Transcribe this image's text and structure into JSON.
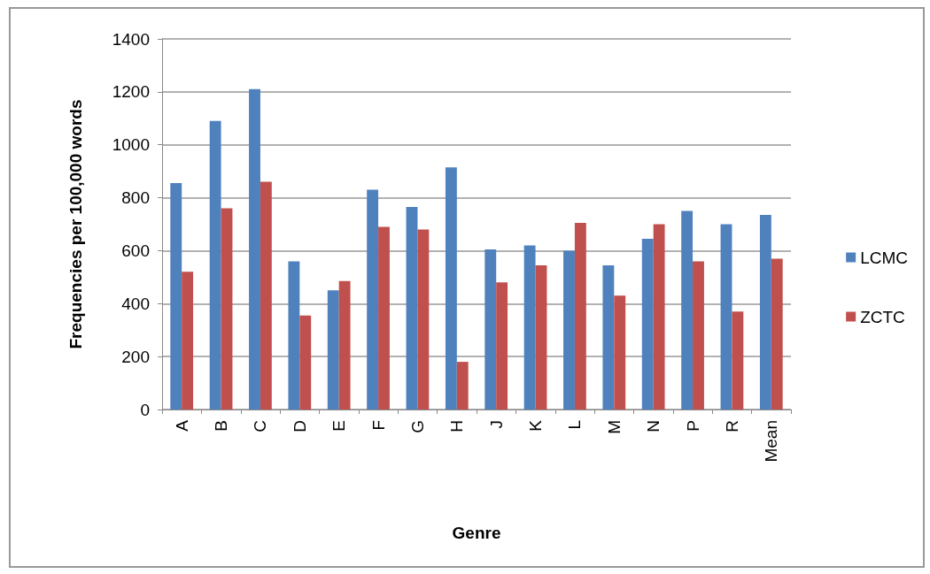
{
  "chart_data": {
    "type": "bar",
    "xlabel": "Genre",
    "ylabel": "Frequencies per 100,000 words",
    "categories": [
      "A",
      "B",
      "C",
      "D",
      "E",
      "F",
      "G",
      "H",
      "J",
      "K",
      "L",
      "M",
      "N",
      "P",
      "R",
      "Mean"
    ],
    "series": [
      {
        "name": "LCMC",
        "color": "#4f81bd",
        "values": [
          855,
          1090,
          1210,
          560,
          450,
          830,
          765,
          915,
          605,
          620,
          600,
          545,
          645,
          750,
          700,
          735
        ]
      },
      {
        "name": "ZCTC",
        "color": "#c0504d",
        "values": [
          520,
          760,
          860,
          355,
          485,
          690,
          680,
          180,
          480,
          545,
          705,
          430,
          700,
          560,
          370,
          570
        ]
      }
    ],
    "ylim": [
      0,
      1400
    ],
    "yticks": [
      0,
      200,
      400,
      600,
      800,
      1000,
      1200,
      1400
    ],
    "grid": "y",
    "legend": "right"
  }
}
